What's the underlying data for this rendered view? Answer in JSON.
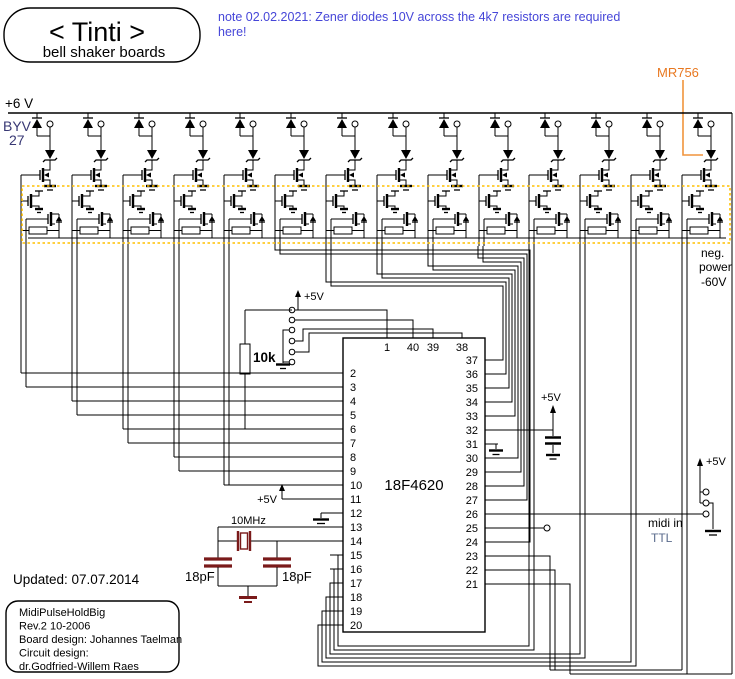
{
  "title": {
    "main": "< Tinti >",
    "sub": "bell shaker boards"
  },
  "note": {
    "line1": "note 02.02.2021: Zener diodes 10V across the 4k7 resistors are required",
    "line2": "here!"
  },
  "labels": {
    "rail": "+6  V",
    "diode_type": "BYV",
    "diode_type2": "27",
    "mr756": "MR756",
    "neg1": "neg.",
    "neg2": "power",
    "neg3": "-60V",
    "r10k": "10k",
    "v5": "+5V",
    "xtal": "10MHz",
    "c18": "18pF",
    "midi1": "midi in",
    "midi2": "TTL",
    "updated": "Updated:   07.07.2014"
  },
  "ic": {
    "name": "18F4620",
    "pins_top": [
      "1",
      "40",
      "39",
      "38"
    ],
    "pins_left": [
      "2",
      "3",
      "4",
      "5",
      "6",
      "7",
      "8",
      "9",
      "10",
      "11",
      "12",
      "13",
      "14",
      "15",
      "16",
      "17",
      "18",
      "19",
      "20"
    ],
    "pins_right": [
      "37",
      "36",
      "35",
      "34",
      "33",
      "32",
      "31",
      "30",
      "29",
      "28",
      "27",
      "26",
      "25",
      "24",
      "23",
      "22",
      "21"
    ]
  },
  "infobox": {
    "lines": [
      "MidiPulseHoldBig",
      "Rev.2 10-2006",
      "Board design:  Johannes Taelman",
      "Circuit design:",
      "dr.Godfried-Willem Raes"
    ]
  },
  "cells": {
    "count": 14
  },
  "colors": {
    "note_blue": "#4646d8",
    "orange_text": "#e87820",
    "orange_line": "#f0943c",
    "highlight_yellow": "#ffc000",
    "dark_red": "#7a1a1a",
    "byv_ink": "#383874"
  }
}
